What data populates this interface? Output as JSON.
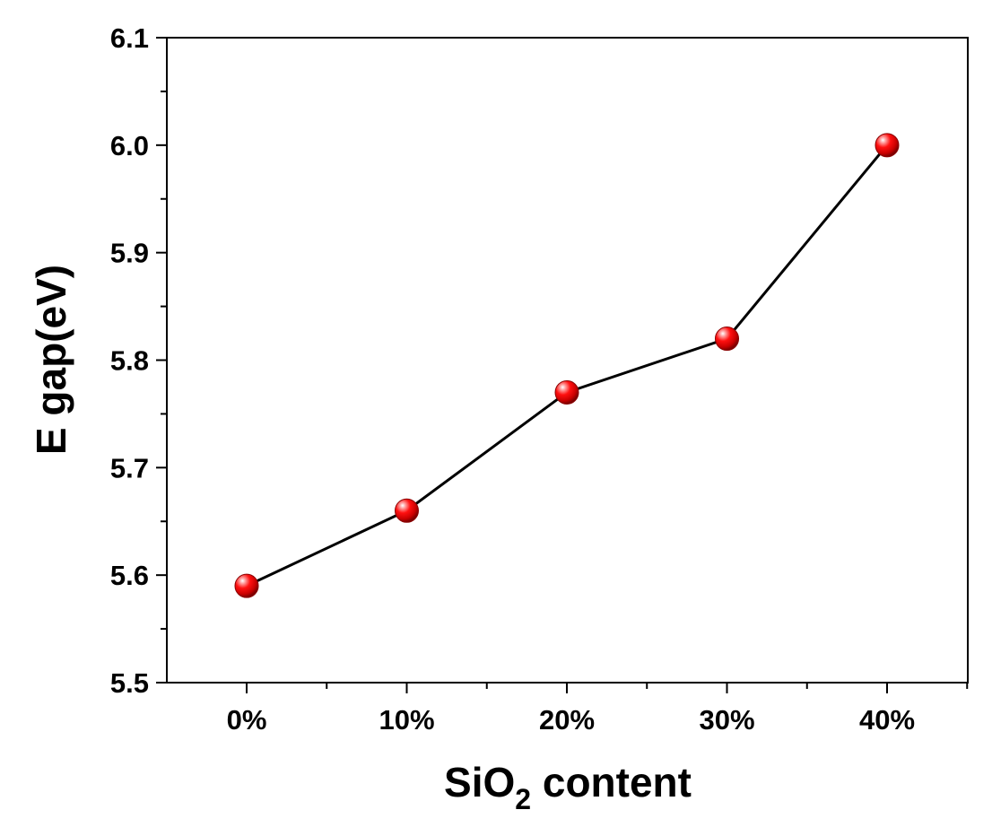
{
  "chart_data": {
    "type": "line",
    "categories": [
      "0%",
      "10%",
      "20%",
      "30%",
      "40%"
    ],
    "series": [
      {
        "values": [
          5.59,
          5.66,
          5.77,
          5.82,
          6.0
        ]
      }
    ],
    "ylabel": "E gap(eV)",
    "xlabel": {
      "main": "SiO",
      "subscript": "2",
      "suffix": " content"
    },
    "ylim": [
      5.5,
      6.1
    ],
    "yticks": [
      "5.5",
      "5.6",
      "5.7",
      "5.8",
      "5.9",
      "6.0",
      "6.1"
    ],
    "grid": false,
    "colors": {
      "marker": "#e00000",
      "line": "#000000",
      "axis": "#000000"
    }
  }
}
